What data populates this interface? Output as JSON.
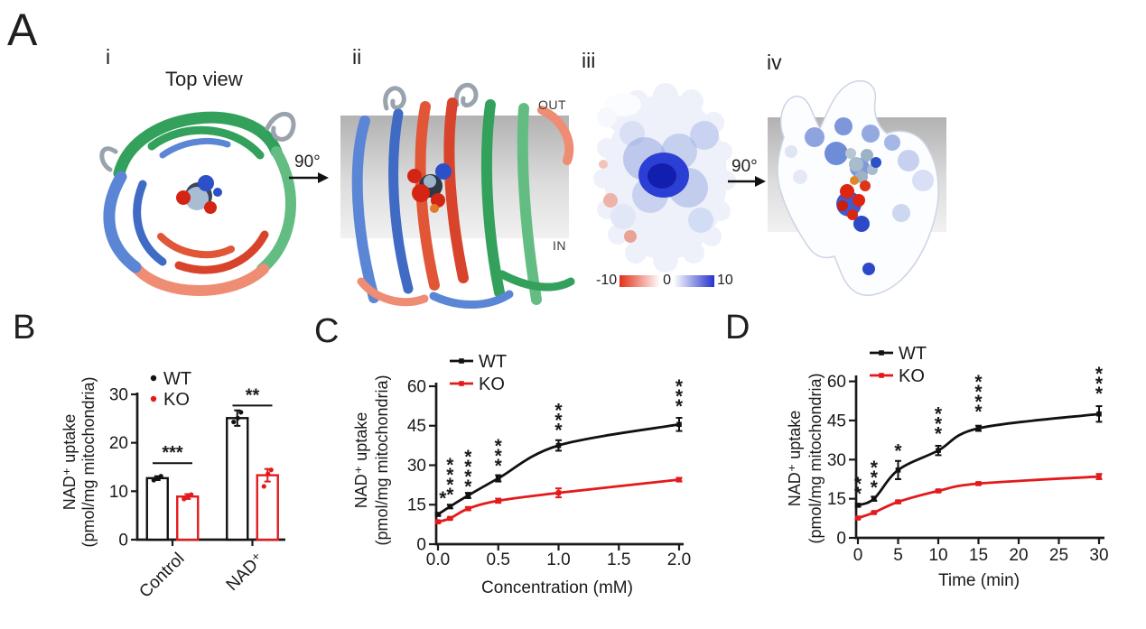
{
  "panels": {
    "a": {
      "label": "A",
      "i": {
        "label": "i",
        "title": "Top view"
      },
      "ii": {
        "label": "ii",
        "out": "OUT",
        "in": "IN"
      },
      "iii": {
        "label": "iii",
        "colorbar": {
          "min": "-10",
          "mid": "0",
          "max": "10"
        }
      },
      "iv": {
        "label": "iv"
      },
      "rotate1": "90°",
      "rotate2": "90°"
    },
    "b": {
      "label": "B"
    },
    "c": {
      "label": "C"
    },
    "d": {
      "label": "D"
    }
  },
  "colors": {
    "wt": "#111111",
    "ko": "#e31a1c",
    "axis": "#1a1a1a",
    "membrane": "#c9c9c9"
  },
  "chart_data": [
    {
      "panel": "B",
      "type": "bar",
      "ylabel_line1": "NAD⁺ uptake",
      "ylabel_line2": "(pmol/mg mitochondria)",
      "categories": [
        "Control",
        "NAD⁺"
      ],
      "ylim": [
        0,
        30
      ],
      "yticks": [
        0,
        10,
        20,
        30
      ],
      "legend": [
        "WT",
        "KO"
      ],
      "series": [
        {
          "name": "WT",
          "color": "#111111",
          "values": [
            12.7,
            25.1
          ],
          "errors": [
            0.4,
            1.6
          ],
          "points": [
            [
              12.3,
              12.7,
              13.1
            ],
            [
              24.3,
              25.1,
              26.3
            ]
          ]
        },
        {
          "name": "KO",
          "color": "#e31a1c",
          "values": [
            8.9,
            13.3
          ],
          "errors": [
            0.5,
            1.3
          ],
          "points": [
            [
              8.4,
              8.9,
              9.3
            ],
            [
              11.0,
              13.6,
              14.4
            ]
          ]
        }
      ],
      "significance": [
        {
          "category": "Control",
          "label": "***",
          "y": 15.8
        },
        {
          "category": "NAD⁺",
          "label": "**",
          "y": 27.7
        }
      ]
    },
    {
      "panel": "C",
      "type": "line",
      "xlabel": "Concentration (mM)",
      "ylabel_line1": "NAD⁺ uptake",
      "ylabel_line2": "(pmol/mg mitochondria)",
      "x": [
        0,
        0.1,
        0.25,
        0.5,
        1.0,
        2.0
      ],
      "xlim": [
        0,
        2.0
      ],
      "xticks": [
        0,
        0.5,
        1.0,
        1.5,
        2.0
      ],
      "xtick_labels": [
        "0.0",
        "0.5",
        "1.0",
        "1.5",
        "2.0"
      ],
      "ylim": [
        0,
        60
      ],
      "yticks": [
        0,
        15,
        30,
        45,
        60
      ],
      "legend": [
        "WT",
        "KO"
      ],
      "series": [
        {
          "name": "WT",
          "color": "#111111",
          "values": [
            11.3,
            14.3,
            18.5,
            25.0,
            37.5,
            45.5
          ],
          "errors": [
            0.5,
            0.7,
            1.0,
            1.2,
            2.0,
            2.5
          ]
        },
        {
          "name": "KO",
          "color": "#e31a1c",
          "values": [
            8.5,
            9.8,
            13.5,
            16.5,
            19.5,
            24.5
          ],
          "errors": [
            0.4,
            0.4,
            0.6,
            0.8,
            1.7,
            0.7
          ]
        }
      ],
      "significance": [
        {
          "x": 0.04,
          "y": 15.0,
          "label": "*"
        },
        {
          "x": 0.1,
          "y": 16.5,
          "label": "****"
        },
        {
          "x": 0.25,
          "y": 19.5,
          "label": "****"
        },
        {
          "x": 0.5,
          "y": 27.5,
          "label": "***"
        },
        {
          "x": 1.0,
          "y": 41.0,
          "label": "***"
        },
        {
          "x": 2.0,
          "y": 50.0,
          "label": "***"
        }
      ]
    },
    {
      "panel": "D",
      "type": "line",
      "xlabel": "Time (min)",
      "ylabel_line1": "NAD⁺ uptake",
      "ylabel_line2": "(pmol/mg mitochondria)",
      "x": [
        0,
        2,
        5,
        10,
        15,
        30
      ],
      "xlim": [
        0,
        30
      ],
      "xticks": [
        0,
        5,
        10,
        15,
        20,
        25,
        30
      ],
      "xtick_labels": [
        "0",
        "5",
        "10",
        "15",
        "20",
        "25",
        "30"
      ],
      "ylim": [
        0,
        60
      ],
      "yticks": [
        0,
        15,
        30,
        45,
        60
      ],
      "legend": [
        "WT",
        "KO"
      ],
      "series": [
        {
          "name": "WT",
          "color": "#111111",
          "values": [
            12.5,
            15.0,
            26.0,
            33.5,
            42.0,
            47.5
          ],
          "errors": [
            0.5,
            0.8,
            3.5,
            1.8,
            1.0,
            3.0
          ]
        },
        {
          "name": "KO",
          "color": "#e31a1c",
          "values": [
            7.6,
            9.7,
            13.8,
            18.0,
            20.8,
            23.5
          ],
          "errors": [
            0.3,
            0.3,
            0.5,
            0.5,
            0.5,
            1.0
          ]
        }
      ],
      "significance": [
        {
          "x": 0,
          "y": 14.5,
          "label": "**"
        },
        {
          "x": 2,
          "y": 17.0,
          "label": "***"
        },
        {
          "x": 5,
          "y": 31.0,
          "label": "*"
        },
        {
          "x": 10,
          "y": 37.5,
          "label": "***"
        },
        {
          "x": 15,
          "y": 46.0,
          "label": "****"
        },
        {
          "x": 30,
          "y": 53.0,
          "label": "***"
        }
      ]
    }
  ]
}
